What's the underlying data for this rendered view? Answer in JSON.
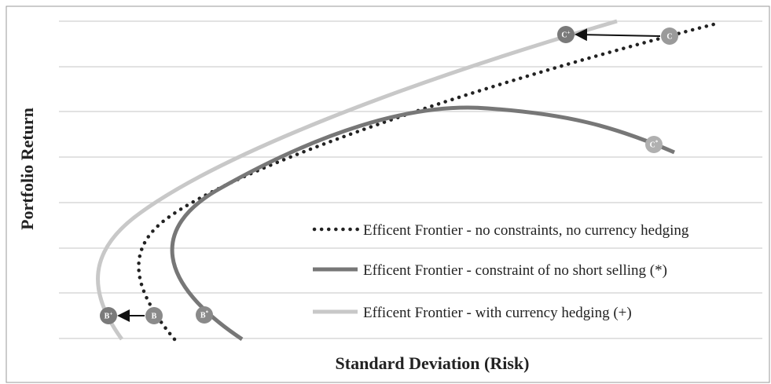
{
  "x_axis_label": "Standard Deviation (Risk)",
  "y_axis_label": "Portfolio Return",
  "legend": [
    "Efficent Frontier - no constraints, no currency hedging",
    "Efficent Frontier - constraint of no short selling (*)",
    "Efficent Frontier - with currency hedging (+)"
  ],
  "points": [
    {
      "base": "B",
      "sup": "+"
    },
    {
      "base": "B",
      "sup": ""
    },
    {
      "base": "B",
      "sup": "*"
    },
    {
      "base": "C",
      "sup": "+"
    },
    {
      "base": "C",
      "sup": ""
    },
    {
      "base": "C",
      "sup": "*"
    }
  ]
}
